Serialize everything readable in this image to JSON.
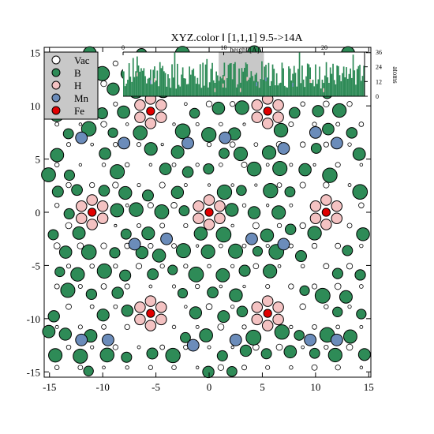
{
  "chart_data": {
    "type": "scatter",
    "title": "XYZ.color ‖ [1,1,1] 9.5->14A",
    "xlim": [
      -15.5,
      15.2
    ],
    "ylim": [
      -15.5,
      15.5
    ],
    "x_ticks": [
      -15,
      -10,
      -5,
      0,
      5,
      10,
      15
    ],
    "y_ticks": [
      -15,
      -10,
      -5,
      0,
      5,
      10,
      15
    ],
    "grid": false,
    "legend_position": "top-left",
    "legend": [
      {
        "label": "Vac",
        "color": "#ffffff"
      },
      {
        "label": "B",
        "color": "#2e8b57"
      },
      {
        "label": "H",
        "color": "#f4c2c2"
      },
      {
        "label": "Mn",
        "color": "#6b8cba"
      },
      {
        "label": "Fe",
        "color": "#e00000"
      }
    ],
    "series": [
      {
        "name": "Fe",
        "color": "#e00000",
        "size": 0.38,
        "points": [
          [
            -11,
            0
          ],
          [
            0,
            0
          ],
          [
            11,
            0
          ],
          [
            -5.5,
            9.5
          ],
          [
            5.5,
            9.5
          ],
          [
            -5.5,
            -9.5
          ],
          [
            5.5,
            -9.5
          ]
        ]
      },
      {
        "name": "H",
        "color": "#f4c2c2",
        "size": 0.5,
        "offset_radius": 1.15,
        "centers": [
          [
            -11,
            0
          ],
          [
            0,
            0
          ],
          [
            11,
            0
          ],
          [
            -5.5,
            9.5
          ],
          [
            5.5,
            9.5
          ],
          [
            -5.5,
            -9.5
          ],
          [
            5.5,
            -9.5
          ]
        ],
        "angles": [
          30,
          90,
          150,
          210,
          270,
          330
        ]
      },
      {
        "name": "Mn",
        "color": "#6b8cba",
        "size": 0.55,
        "points": [
          [
            -12,
            7
          ],
          [
            -8,
            6.5
          ],
          [
            -2,
            6.5
          ],
          [
            1.5,
            7
          ],
          [
            7,
            6
          ],
          [
            10,
            7.5
          ],
          [
            12,
            6.5
          ],
          [
            -7,
            -3
          ],
          [
            -4,
            -2.5
          ],
          [
            4,
            -2.5
          ],
          [
            7,
            -3
          ],
          [
            -12,
            -12
          ],
          [
            -9.5,
            -12
          ],
          [
            -1.5,
            -12.5
          ],
          [
            2.5,
            -12
          ],
          [
            9.5,
            -12
          ],
          [
            12,
            -12
          ]
        ]
      },
      {
        "name": "B",
        "color": "#2e8b57",
        "lattice": {
          "a": 2.2,
          "range": [
            -15,
            15
          ],
          "jitter": 0.35,
          "size_min": 0.45,
          "size_max": 0.7
        }
      },
      {
        "name": "Vac",
        "color": "#ffffff",
        "lattice": {
          "a": 2.2,
          "shift": [
            1.1,
            0.65
          ],
          "range": [
            -15,
            15
          ],
          "size_min": 0.12,
          "size_max": 0.3
        }
      }
    ],
    "inset": {
      "type": "bar",
      "xlabel": "height [A]",
      "ylabel": "atoms",
      "x_ticks": [
        0,
        10,
        20
      ],
      "xlim": [
        0,
        24
      ],
      "y_ticks": [
        0,
        12,
        24,
        36
      ],
      "ylim": [
        0,
        36
      ],
      "highlight_range": [
        9.5,
        14
      ],
      "highlight_color": "#c8c8c8",
      "bar_color": "#2e8b57"
    }
  }
}
